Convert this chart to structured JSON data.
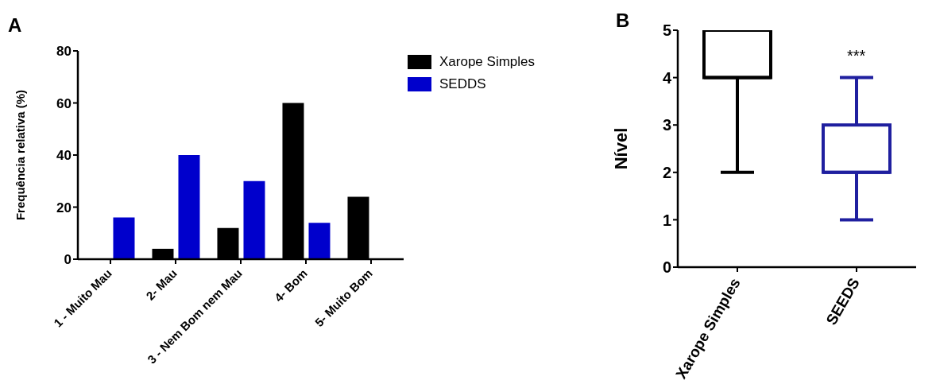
{
  "chart_data": [
    {
      "type": "bar",
      "ylabel": "Frequência relativa  (%)",
      "categories": [
        "1 - Muito Mau",
        "2- Mau",
        "3 - Nem Bom nem Mau",
        "4- Bom",
        "5- Muito Bom"
      ],
      "series": [
        {
          "name": "Xarope Simples",
          "color": "#000000",
          "values": [
            0,
            4,
            12,
            60,
            24
          ]
        },
        {
          "name": "SEDDS",
          "color": "#0000cc",
          "values": [
            16,
            40,
            30,
            14,
            0
          ]
        }
      ],
      "ylim": [
        0,
        80
      ],
      "yticks": [
        0,
        20,
        40,
        60,
        80
      ],
      "grid": false,
      "legend": "top right",
      "annotations": [
        "A"
      ]
    },
    {
      "type": "box",
      "ylabel": "Nível",
      "categories": [
        "Xarope Simples",
        "SEEDS"
      ],
      "colors": [
        "#000000",
        "#1f1f9f"
      ],
      "boxes": [
        {
          "low": 2,
          "q1": 4,
          "median": 4,
          "q3": 5,
          "high": 5
        },
        {
          "low": 1,
          "q1": 2,
          "median": 2,
          "q3": 3,
          "high": 4
        }
      ],
      "ylim": [
        0,
        5
      ],
      "yticks": [
        0,
        1,
        2,
        3,
        4,
        5
      ],
      "grid": false,
      "annotations": [
        "B",
        "***"
      ]
    }
  ]
}
